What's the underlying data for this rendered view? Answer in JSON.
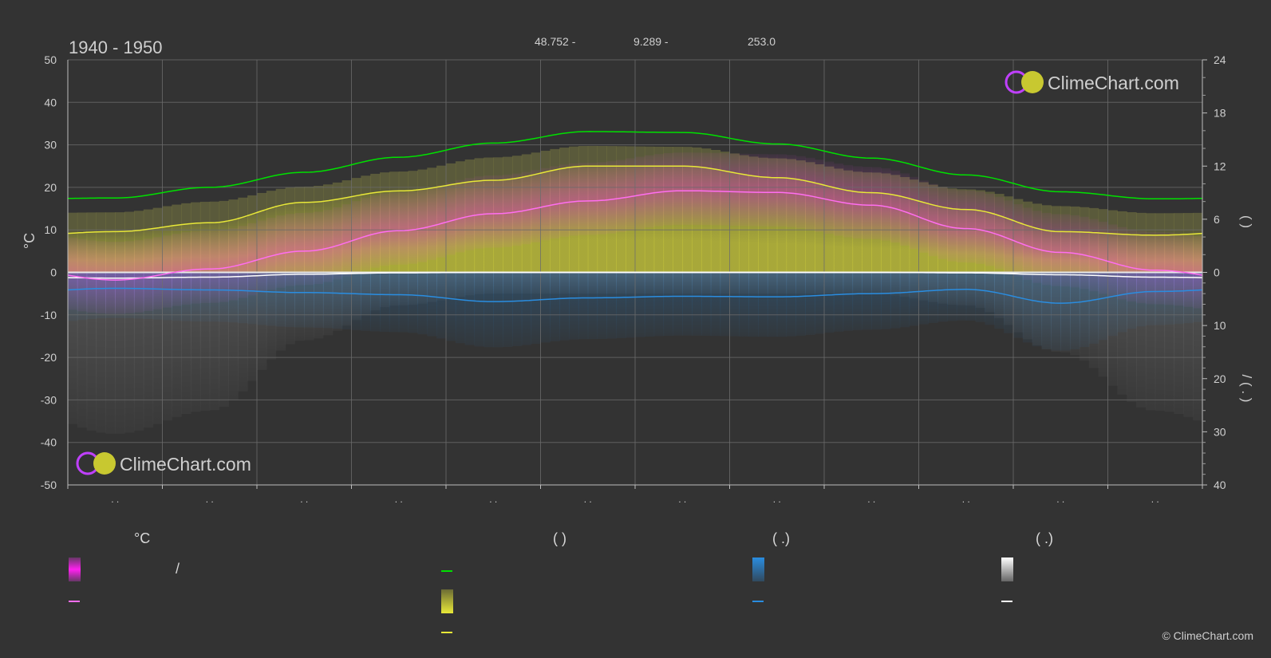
{
  "header": {
    "period": "1940 - 1950",
    "latitude": "48.752 -",
    "longitude": "9.289 -",
    "elevation": "253.0"
  },
  "watermark": {
    "brand": "ClimeChart.com"
  },
  "copyright": "© ClimeChart.com",
  "colors": {
    "background": "#333333",
    "grid": "#6a6a6a",
    "daylight": "#00e000",
    "sunshine": "#e8e838",
    "temperature": "#ff6ef0",
    "precipitation": "#2a8de0",
    "snow": "#ffffff",
    "brand_text": "#2f9be8"
  },
  "chart_data": {
    "type": "line",
    "months": 12,
    "month_tick_labels": [
      ". .",
      ". .",
      ". .",
      ". .",
      ". .",
      ". .",
      ". .",
      ". .",
      ". .",
      ". .",
      ". .",
      ". ."
    ],
    "left_axis": {
      "label": "°C",
      "range": [
        -50,
        50
      ],
      "ticks": [
        50,
        40,
        30,
        20,
        10,
        0,
        -10,
        -20,
        -30,
        -40,
        -50
      ]
    },
    "right_axis_top": {
      "label": "(        )",
      "range": [
        0,
        24
      ],
      "ticks": [
        24,
        18,
        12,
        6,
        0
      ]
    },
    "right_axis_bottom": {
      "label": "/  (  .  )",
      "range": [
        0,
        40
      ],
      "ticks": [
        10,
        20,
        30,
        40
      ]
    },
    "grid": true,
    "series": [
      {
        "key": "daylight",
        "axis": "hours",
        "values": [
          8.4,
          9.6,
          11.3,
          13.0,
          14.6,
          15.9,
          15.8,
          14.5,
          12.9,
          11.0,
          9.1,
          8.3
        ]
      },
      {
        "key": "sunshine",
        "axis": "hours",
        "values": [
          4.6,
          5.6,
          7.9,
          9.2,
          10.4,
          12.0,
          12.0,
          10.7,
          9.0,
          7.1,
          4.6,
          4.2
        ]
      },
      {
        "key": "temperature_mean",
        "axis": "celsius",
        "values": [
          -1.8,
          0.8,
          5.0,
          9.8,
          13.8,
          16.8,
          19.2,
          18.8,
          15.8,
          10.3,
          4.7,
          0.5
        ]
      },
      {
        "key": "precipitation",
        "axis": "mm",
        "values": [
          3.0,
          3.3,
          3.8,
          4.2,
          5.5,
          4.8,
          4.5,
          4.6,
          4.0,
          3.2,
          5.8,
          3.6
        ]
      },
      {
        "key": "snow",
        "axis": "mm",
        "values": [
          1.2,
          1.0,
          0.4,
          0.1,
          0.0,
          0.0,
          0.0,
          0.0,
          0.0,
          0.1,
          0.5,
          1.0
        ]
      }
    ]
  },
  "legend": {
    "columns": [
      {
        "heading": "°C",
        "items": [
          "/",
          ""
        ]
      },
      {
        "heading": "(          )",
        "items": [
          "",
          "",
          ""
        ]
      },
      {
        "heading": "(    .)",
        "items": [
          "",
          ""
        ]
      },
      {
        "heading": "(    .)",
        "items": [
          "",
          ""
        ]
      }
    ]
  }
}
